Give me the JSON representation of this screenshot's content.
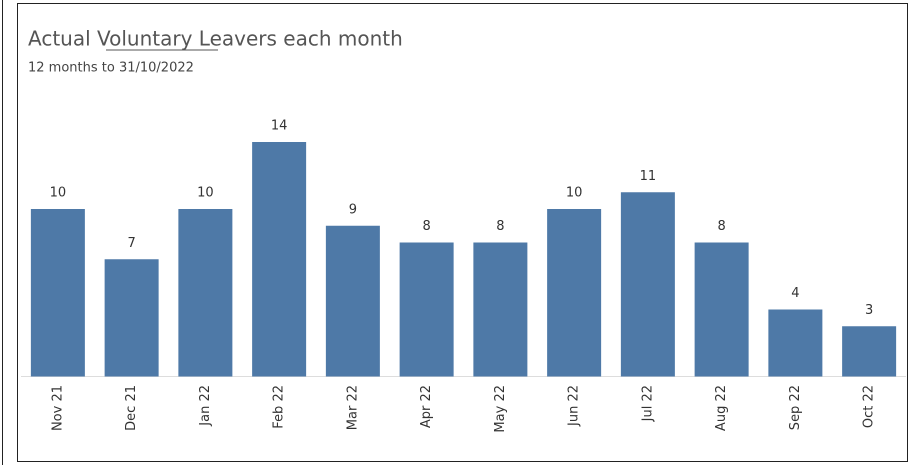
{
  "chart_data": {
    "type": "bar",
    "title": "Actual Voluntary Leavers each month",
    "subtitle": "12 months to 31/10/2022",
    "categories": [
      "Nov 21",
      "Dec 21",
      "Jan 22",
      "Feb 22",
      "Mar 22",
      "Apr 22",
      "May 22",
      "Jun 22",
      "Jul 22",
      "Aug 22",
      "Sep 22",
      "Oct 22"
    ],
    "values": [
      10,
      7,
      10,
      14,
      9,
      8,
      8,
      10,
      11,
      8,
      4,
      3
    ],
    "color": "#4e79a7",
    "ylim": [
      0,
      14
    ]
  }
}
